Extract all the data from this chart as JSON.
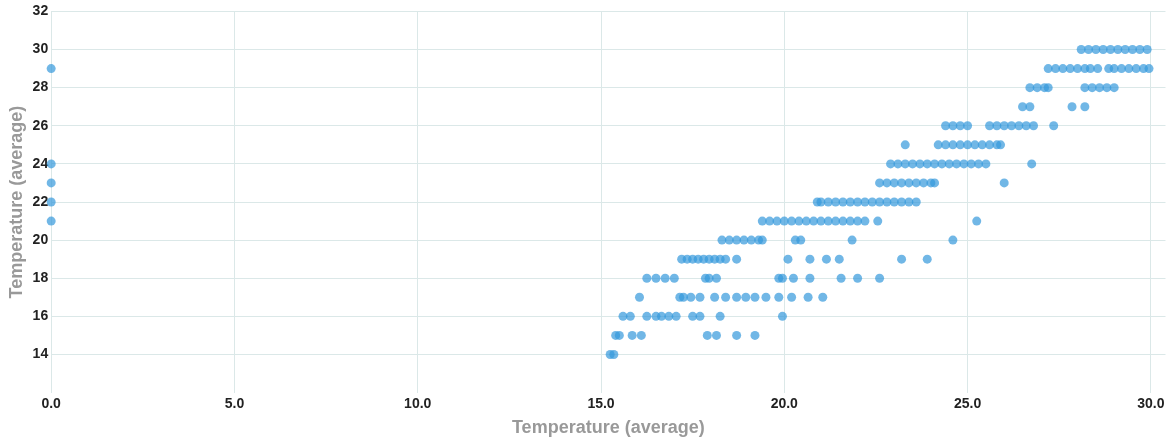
{
  "chart_data": {
    "type": "scatter",
    "xlabel": "Temperature (average)",
    "ylabel": "Temperature (average)",
    "xlim": [
      0,
      30.4
    ],
    "xticks": [
      {
        "value": 0,
        "label": "0.0"
      },
      {
        "value": 5,
        "label": "5.0"
      },
      {
        "value": 10,
        "label": "10.0"
      },
      {
        "value": 15,
        "label": "15.0"
      },
      {
        "value": 20,
        "label": "20.0"
      },
      {
        "value": 25,
        "label": "25.0"
      },
      {
        "value": 30,
        "label": "30.0"
      }
    ],
    "ylim": [
      12,
      32
    ],
    "yticks": [
      14,
      16,
      18,
      20,
      22,
      24,
      26,
      28,
      30,
      32
    ],
    "grid": true,
    "legend": false,
    "marker": "circle",
    "series": [
      {
        "color": "#3498db",
        "x": [
          0,
          0,
          0,
          0,
          0,
          15.25,
          15.35,
          15.4,
          15.5,
          15.85,
          16.1,
          17.9,
          18.15,
          18.7,
          19.2,
          15.6,
          15.8,
          16.25,
          16.5,
          16.65,
          16.85,
          17.05,
          17.5,
          17.7,
          18.25,
          19.95,
          16.05,
          17.15,
          17.25,
          17.45,
          17.7,
          18.1,
          18.4,
          18.7,
          18.95,
          19.2,
          19.5,
          19.85,
          20.2,
          20.65,
          21.05,
          16.25,
          16.5,
          16.75,
          17.0,
          17.85,
          17.95,
          18.15,
          19.85,
          19.95,
          20.25,
          20.7,
          21.55,
          22.0,
          22.6,
          17.2,
          17.35,
          17.5,
          17.65,
          17.8,
          17.95,
          18.1,
          18.25,
          18.4,
          18.7,
          20.1,
          20.7,
          21.15,
          21.5,
          23.2,
          23.9,
          18.3,
          18.5,
          18.7,
          18.9,
          19.1,
          19.3,
          19.4,
          20.3,
          20.45,
          21.85,
          24.6,
          19.4,
          19.6,
          19.8,
          20.0,
          20.2,
          20.4,
          20.6,
          20.8,
          21.0,
          21.2,
          21.4,
          21.6,
          21.8,
          22.0,
          22.2,
          22.55,
          25.25,
          20.9,
          21.0,
          21.2,
          21.4,
          21.6,
          21.8,
          22.0,
          22.2,
          22.4,
          22.6,
          22.8,
          23.0,
          23.2,
          23.4,
          23.6,
          22.6,
          22.8,
          23.0,
          23.2,
          23.4,
          23.6,
          23.8,
          24.0,
          24.1,
          26.0,
          22.9,
          23.1,
          23.3,
          23.5,
          23.7,
          23.9,
          24.1,
          24.3,
          24.5,
          24.7,
          24.9,
          25.1,
          25.3,
          25.5,
          26.75,
          23.3,
          24.2,
          24.4,
          24.6,
          24.8,
          25.0,
          25.2,
          25.4,
          25.6,
          25.8,
          25.9,
          24.4,
          24.6,
          24.8,
          25.0,
          25.6,
          25.8,
          26.0,
          26.2,
          26.4,
          26.6,
          26.8,
          27.35,
          26.5,
          26.7,
          27.85,
          28.2,
          26.7,
          26.9,
          27.1,
          27.2,
          28.2,
          28.4,
          28.6,
          28.8,
          29.0,
          27.2,
          27.4,
          27.6,
          27.8,
          28.0,
          28.2,
          28.35,
          28.55,
          28.85,
          29.0,
          29.2,
          29.4,
          29.6,
          29.8,
          29.95,
          28.1,
          28.3,
          28.5,
          28.7,
          28.9,
          29.1,
          29.3,
          29.5,
          29.7,
          29.9
        ],
        "values": [
          29,
          24,
          23,
          22,
          21,
          14,
          14,
          15,
          15,
          15,
          15,
          15,
          15,
          15,
          15,
          16,
          16,
          16,
          16,
          16,
          16,
          16,
          16,
          16,
          16,
          16,
          17,
          17,
          17,
          17,
          17,
          17,
          17,
          17,
          17,
          17,
          17,
          17,
          17,
          17,
          17,
          18,
          18,
          18,
          18,
          18,
          18,
          18,
          18,
          18,
          18,
          18,
          18,
          18,
          18,
          19,
          19,
          19,
          19,
          19,
          19,
          19,
          19,
          19,
          19,
          19,
          19,
          19,
          19,
          19,
          19,
          20,
          20,
          20,
          20,
          20,
          20,
          20,
          20,
          20,
          20,
          20,
          21,
          21,
          21,
          21,
          21,
          21,
          21,
          21,
          21,
          21,
          21,
          21,
          21,
          21,
          21,
          21,
          21,
          22,
          22,
          22,
          22,
          22,
          22,
          22,
          22,
          22,
          22,
          22,
          22,
          22,
          22,
          22,
          23,
          23,
          23,
          23,
          23,
          23,
          23,
          23,
          23,
          23,
          24,
          24,
          24,
          24,
          24,
          24,
          24,
          24,
          24,
          24,
          24,
          24,
          24,
          24,
          24,
          25,
          25,
          25,
          25,
          25,
          25,
          25,
          25,
          25,
          25,
          25,
          26,
          26,
          26,
          26,
          26,
          26,
          26,
          26,
          26,
          26,
          26,
          26,
          27,
          27,
          27,
          27,
          28,
          28,
          28,
          28,
          28,
          28,
          28,
          28,
          28,
          29,
          29,
          29,
          29,
          29,
          29,
          29,
          29,
          29,
          29,
          29,
          29,
          29,
          29,
          29,
          30,
          30,
          30,
          30,
          30,
          30,
          30,
          30,
          30,
          30
        ]
      }
    ]
  }
}
